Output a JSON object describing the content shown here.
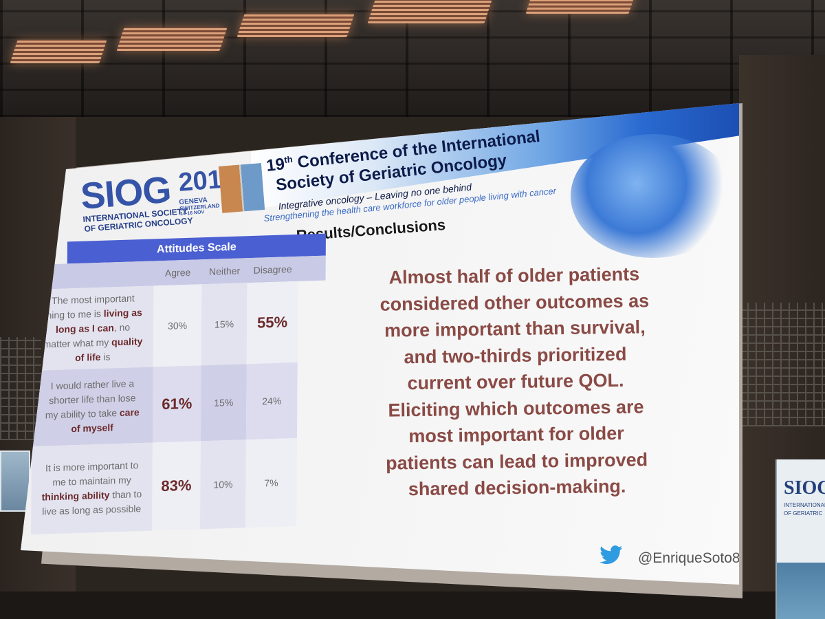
{
  "logo": {
    "brand": "SIOG",
    "line1": "INTERNATIONAL SOCIETY",
    "line2": "OF GERIATRIC ONCOLOGY",
    "year": "2019",
    "city": "GENEVA",
    "country": "SWITZERLAND",
    "dates": "14-16 NOV"
  },
  "banner": {
    "conference_num": "19",
    "conference_sup": "th",
    "conference_line1": "Conference of the International",
    "conference_line2": "Society of Geriatric Oncology",
    "tagline": "Integrative oncology – Leaving no one behind",
    "strapline": "Strengthening the health care workforce for older people living with cancer"
  },
  "slide": {
    "heading": "Results/Conclusions",
    "table": {
      "title": "Attitudes Scale",
      "columns": [
        "Agree",
        "Neither",
        "Disagree"
      ],
      "rows": [
        {
          "statement_parts": [
            "The most important thing to me is ",
            "living as long as I can",
            ", no matter what my ",
            "quality of life",
            " is"
          ],
          "agree": "30%",
          "neither": "15%",
          "disagree": "55%"
        },
        {
          "statement_parts": [
            "I would rather live a shorter life than lose my ability to take ",
            "care of myself"
          ],
          "agree": "61%",
          "neither": "15%",
          "disagree": "24%"
        },
        {
          "statement_parts": [
            "It is more important to me to maintain my ",
            "thinking ability",
            " than to live as long as possible"
          ],
          "agree": "83%",
          "neither": "10%",
          "disagree": "7%"
        }
      ]
    },
    "conclusion": "Almost half of older patients considered other outcomes as more important than survival, and two-thirds prioritized current over future QOL. Eliciting which outcomes are most important for older patients can lead to improved shared decision-making.",
    "twitter_handle": "@EnriqueSoto8"
  },
  "stand": {
    "brand": "SIOG",
    "line1": "INTERNATIONAL",
    "line2": "OF GERIATRIC"
  },
  "colors": {
    "table_header": "#4a5fd1",
    "conclusion_text": "#8a4a45",
    "logo_blue": "#3554a8",
    "twitter_blue": "#2f9be0"
  },
  "icons": [
    "twitter-bird-icon"
  ]
}
